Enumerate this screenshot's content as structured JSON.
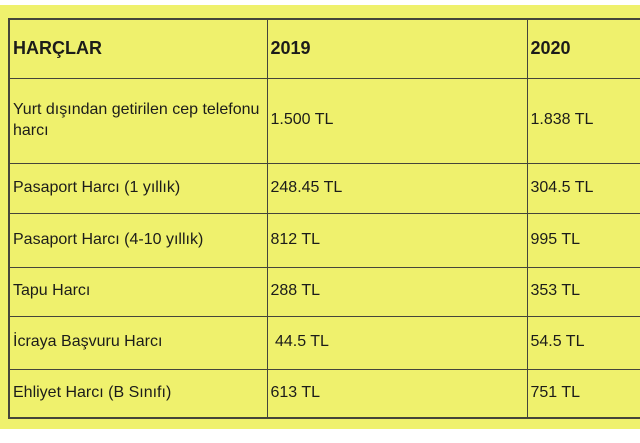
{
  "page": {
    "background_color": "#ffffff",
    "banner_color": "#eff16d",
    "border_color": "#45453a",
    "text_color": "#1c1c1a"
  },
  "chart_data": {
    "type": "table",
    "title": "HARÇLAR",
    "columns": [
      "HARÇLAR",
      "2019",
      "2020"
    ],
    "rows": [
      {
        "label": "Yurt dışından getirilen cep telefonu harcı",
        "values": [
          "1.500 TL",
          "1.838 TL"
        ]
      },
      {
        "label": "Pasaport Harcı (1 yıllık)",
        "values": [
          "248.45 TL",
          "304.5 TL"
        ]
      },
      {
        "label": "Pasaport Harcı (4-10 yıllık)",
        "values": [
          "812 TL",
          "995 TL"
        ]
      },
      {
        "label": "Tapu Harcı",
        "values": [
          "288 TL",
          "353 TL"
        ]
      },
      {
        "label": "İcraya Başvuru Harcı",
        "values": [
          " 44.5 TL",
          "54.5 TL"
        ]
      },
      {
        "label": "Ehliyet Harcı (B Sınıfı)",
        "values": [
          "613 TL",
          "751 TL"
        ]
      }
    ]
  }
}
